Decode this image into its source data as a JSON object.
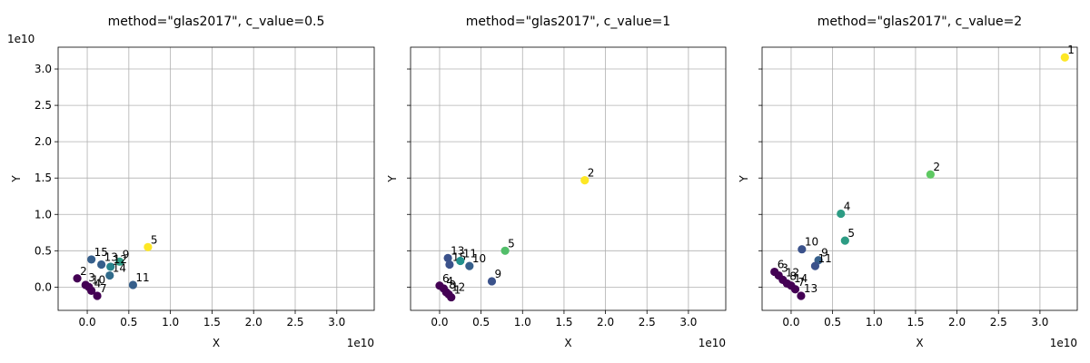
{
  "chart_data": [
    {
      "type": "scatter",
      "title": "method=\"glas2017\", c_value=0.5",
      "xlabel": "X",
      "ylabel": "Y",
      "x_offset_label": "1e10",
      "y_offset_label": "1e10",
      "xlim": [
        -0.35,
        3.45
      ],
      "ylim": [
        -0.32,
        3.3
      ],
      "xticks": [
        0.0,
        0.5,
        1.0,
        1.5,
        2.0,
        2.5,
        3.0
      ],
      "yticks": [
        0.0,
        0.5,
        1.0,
        1.5,
        2.0,
        2.5,
        3.0
      ],
      "xtick_labels": [
        "0.0",
        "0.5",
        "1.0",
        "1.5",
        "2.0",
        "2.5",
        "3.0"
      ],
      "ytick_labels": [
        "0.0",
        "0.5",
        "1.0",
        "1.5",
        "2.0",
        "2.5",
        "3.0"
      ],
      "grid": true,
      "color_scale": "viridis",
      "points": [
        {
          "label": "2",
          "x": -0.12,
          "y": 0.12,
          "c": 0.0
        },
        {
          "label": "3",
          "x": -0.02,
          "y": 0.03,
          "c": 0.0
        },
        {
          "label": "10",
          "x": 0.02,
          "y": 0.0,
          "c": 0.0
        },
        {
          "label": "4",
          "x": 0.05,
          "y": -0.05,
          "c": 0.0
        },
        {
          "label": "7",
          "x": 0.12,
          "y": -0.12,
          "c": 0.0
        },
        {
          "label": "15",
          "x": 0.05,
          "y": 0.38,
          "c": 0.3
        },
        {
          "label": "13",
          "x": 0.17,
          "y": 0.31,
          "c": 0.3
        },
        {
          "label": "9",
          "x": 0.39,
          "y": 0.35,
          "c": 0.55
        },
        {
          "label": "12",
          "x": 0.28,
          "y": 0.28,
          "c": 0.45
        },
        {
          "label": "14",
          "x": 0.27,
          "y": 0.16,
          "c": 0.35
        },
        {
          "label": "11",
          "x": 0.55,
          "y": 0.03,
          "c": 0.3
        },
        {
          "label": "5",
          "x": 0.73,
          "y": 0.55,
          "c": 1.0
        }
      ]
    },
    {
      "type": "scatter",
      "title": "method=\"glas2017\", c_value=1",
      "xlabel": "X",
      "ylabel": "Y",
      "x_offset_label": "1e10",
      "y_offset_label": "",
      "xlim": [
        -0.35,
        3.45
      ],
      "ylim": [
        -0.32,
        3.3
      ],
      "xticks": [
        0.0,
        0.5,
        1.0,
        1.5,
        2.0,
        2.5,
        3.0
      ],
      "yticks": [
        0.0,
        0.5,
        1.0,
        1.5,
        2.0,
        2.5,
        3.0
      ],
      "xtick_labels": [
        "0.0",
        "0.5",
        "1.0",
        "1.5",
        "2.0",
        "2.5",
        "3.0"
      ],
      "ytick_labels": [
        "",
        "",
        "",
        "",
        "",
        "",
        ""
      ],
      "grid": true,
      "color_scale": "viridis",
      "points": [
        {
          "label": "6",
          "x": 0.0,
          "y": 0.02,
          "c": 0.0
        },
        {
          "label": "4",
          "x": 0.05,
          "y": -0.02,
          "c": 0.0
        },
        {
          "label": "8",
          "x": 0.08,
          "y": -0.07,
          "c": 0.0
        },
        {
          "label": "12",
          "x": 0.11,
          "y": -0.1,
          "c": 0.0
        },
        {
          "label": "1",
          "x": 0.14,
          "y": -0.14,
          "c": 0.0
        },
        {
          "label": "13",
          "x": 0.1,
          "y": 0.4,
          "c": 0.25
        },
        {
          "label": "15",
          "x": 0.12,
          "y": 0.31,
          "c": 0.25
        },
        {
          "label": "11",
          "x": 0.25,
          "y": 0.36,
          "c": 0.5
        },
        {
          "label": "10",
          "x": 0.36,
          "y": 0.29,
          "c": 0.3
        },
        {
          "label": "9",
          "x": 0.63,
          "y": 0.08,
          "c": 0.25
        },
        {
          "label": "5",
          "x": 0.79,
          "y": 0.5,
          "c": 0.7
        },
        {
          "label": "2",
          "x": 1.75,
          "y": 1.47,
          "c": 1.0
        }
      ]
    },
    {
      "type": "scatter",
      "title": "method=\"glas2017\", c_value=2",
      "xlabel": "X",
      "ylabel": "Y",
      "x_offset_label": "1e10",
      "y_offset_label": "",
      "xlim": [
        -0.35,
        3.45
      ],
      "ylim": [
        -0.32,
        3.3
      ],
      "xticks": [
        0.0,
        0.5,
        1.0,
        1.5,
        2.0,
        2.5,
        3.0
      ],
      "yticks": [
        0.0,
        0.5,
        1.0,
        1.5,
        2.0,
        2.5,
        3.0
      ],
      "xtick_labels": [
        "0.0",
        "0.5",
        "1.0",
        "1.5",
        "2.0",
        "2.5",
        "3.0"
      ],
      "ytick_labels": [
        "",
        "",
        "",
        "",
        "",
        "",
        ""
      ],
      "grid": true,
      "color_scale": "viridis",
      "points": [
        {
          "label": "6",
          "x": -0.2,
          "y": 0.21,
          "c": 0.0
        },
        {
          "label": "3",
          "x": -0.15,
          "y": 0.16,
          "c": 0.0
        },
        {
          "label": "12",
          "x": -0.1,
          "y": 0.1,
          "c": 0.0
        },
        {
          "label": "8",
          "x": -0.05,
          "y": 0.05,
          "c": 0.0
        },
        {
          "label": "14",
          "x": 0.0,
          "y": 0.02,
          "c": 0.0
        },
        {
          "label": "7",
          "x": 0.05,
          "y": -0.03,
          "c": 0.0
        },
        {
          "label": "13",
          "x": 0.12,
          "y": -0.12,
          "c": 0.0
        },
        {
          "label": "10",
          "x": 0.13,
          "y": 0.52,
          "c": 0.25
        },
        {
          "label": "9",
          "x": 0.33,
          "y": 0.37,
          "c": 0.3
        },
        {
          "label": "11",
          "x": 0.29,
          "y": 0.29,
          "c": 0.25
        },
        {
          "label": "4",
          "x": 0.6,
          "y": 1.01,
          "c": 0.55
        },
        {
          "label": "5",
          "x": 0.65,
          "y": 0.64,
          "c": 0.55
        },
        {
          "label": "2",
          "x": 1.68,
          "y": 1.55,
          "c": 0.75
        },
        {
          "label": "1",
          "x": 3.3,
          "y": 3.16,
          "c": 1.0
        }
      ]
    }
  ]
}
